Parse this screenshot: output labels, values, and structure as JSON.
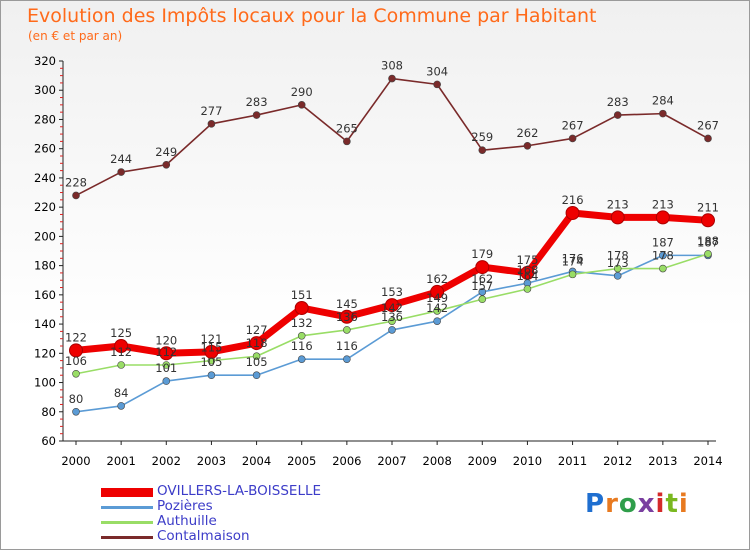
{
  "header": {
    "title": "Evolution des Impôts locaux pour la Commune par Habitant",
    "subtitle": "(en € et par an)"
  },
  "brand": {
    "text": "Proxiti",
    "letter_colors": [
      "#1f6fd0",
      "#e87a20",
      "#2f9e4a",
      "#7a3fa0",
      "#d42a2a",
      "#7ab820",
      "#e87a20"
    ]
  },
  "colors": {
    "title": "#ff6a1a",
    "axis_text": "#000000",
    "legend_text": "#3c3cc8"
  },
  "chart_data": {
    "type": "line",
    "title": "Evolution des Impôts locaux pour la Commune par Habitant",
    "subtitle": "(en € et par an)",
    "xlabel": "",
    "ylabel": "",
    "categories": [
      "2000",
      "2001",
      "2002",
      "2003",
      "2004",
      "2005",
      "2006",
      "2007",
      "2008",
      "2009",
      "2010",
      "2011",
      "2012",
      "2013",
      "2014"
    ],
    "ylim": [
      60,
      320
    ],
    "yticks": [
      60,
      80,
      100,
      120,
      140,
      160,
      180,
      200,
      220,
      240,
      260,
      280,
      300,
      320
    ],
    "grid": false,
    "legend_position": "bottom-left",
    "series": [
      {
        "name": "OVILLERS-LA-BOISSELLE",
        "color": "#ee0000",
        "emphasis": true,
        "values": [
          122,
          125,
          120,
          121,
          127,
          151,
          145,
          153,
          162,
          179,
          175,
          216,
          213,
          213,
          211
        ]
      },
      {
        "name": "Pozières",
        "color": "#5b9bd5",
        "emphasis": false,
        "values": [
          80,
          84,
          101,
          105,
          105,
          116,
          116,
          136,
          142,
          162,
          168,
          176,
          173,
          187,
          187
        ]
      },
      {
        "name": "Authuille",
        "color": "#99dd66",
        "emphasis": false,
        "values": [
          106,
          112,
          112,
          115,
          118,
          132,
          136,
          142,
          149,
          157,
          164,
          174,
          178,
          178,
          188
        ]
      },
      {
        "name": "Contalmaison",
        "color": "#7a2a2a",
        "emphasis": false,
        "values": [
          228,
          244,
          249,
          277,
          283,
          290,
          265,
          308,
          304,
          259,
          262,
          267,
          283,
          284,
          267
        ]
      }
    ]
  }
}
